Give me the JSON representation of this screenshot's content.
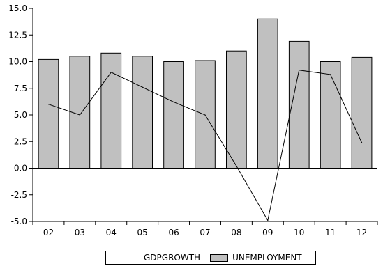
{
  "chart_data": {
    "type": "bar",
    "categories": [
      "02",
      "03",
      "04",
      "05",
      "06",
      "07",
      "08",
      "09",
      "10",
      "11",
      "12"
    ],
    "series": [
      {
        "name": "UNEMPLOYMENT",
        "kind": "bar",
        "values": [
          10.2,
          10.5,
          10.8,
          10.5,
          10.0,
          10.1,
          11.0,
          14.0,
          11.9,
          10.0,
          10.4
        ],
        "color": "#c0c0c0"
      },
      {
        "name": "GDPGROWTH",
        "kind": "line",
        "values": [
          6.0,
          5.0,
          9.0,
          7.6,
          6.2,
          5.0,
          0.2,
          -4.9,
          9.2,
          8.8,
          2.4
        ],
        "color": "#000000"
      }
    ],
    "yticks": [
      "-5.0",
      "-2.5",
      "0.0",
      "2.5",
      "5.0",
      "7.5",
      "10.0",
      "12.5",
      "15.0"
    ],
    "ylim": [
      -5,
      15
    ],
    "xlabel": "",
    "ylabel": "",
    "legend_position": "bottom"
  }
}
